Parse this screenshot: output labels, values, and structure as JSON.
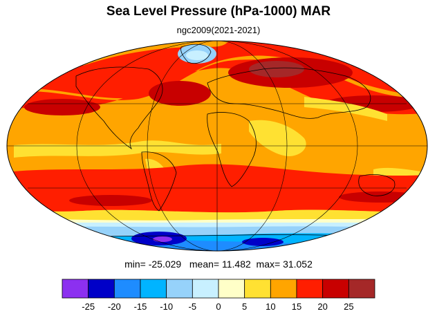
{
  "title": "Sea Level Pressure (hPa-1000) MAR",
  "subtitle": "ngc2009(2021-2021)",
  "stats": {
    "min_label": "min=",
    "min": "-25.029",
    "mean_label": "mean=",
    "mean": "11.482",
    "max_label": "max=",
    "max": "31.052"
  },
  "colorbar": {
    "colors": [
      "#8c30f0",
      "#0000c8",
      "#1e8cff",
      "#00b4ff",
      "#96d2fa",
      "#c8f0ff",
      "#ffffc8",
      "#ffe132",
      "#ffa500",
      "#ff1e00",
      "#c80000",
      "#a52828"
    ],
    "labels": [
      "-25",
      "-20",
      "-15",
      "-10",
      "-5",
      "0",
      "5",
      "10",
      "15",
      "20",
      "25"
    ]
  },
  "map": {
    "projection": "Mollweide",
    "land_outline_color": "#000000",
    "grid": true
  }
}
